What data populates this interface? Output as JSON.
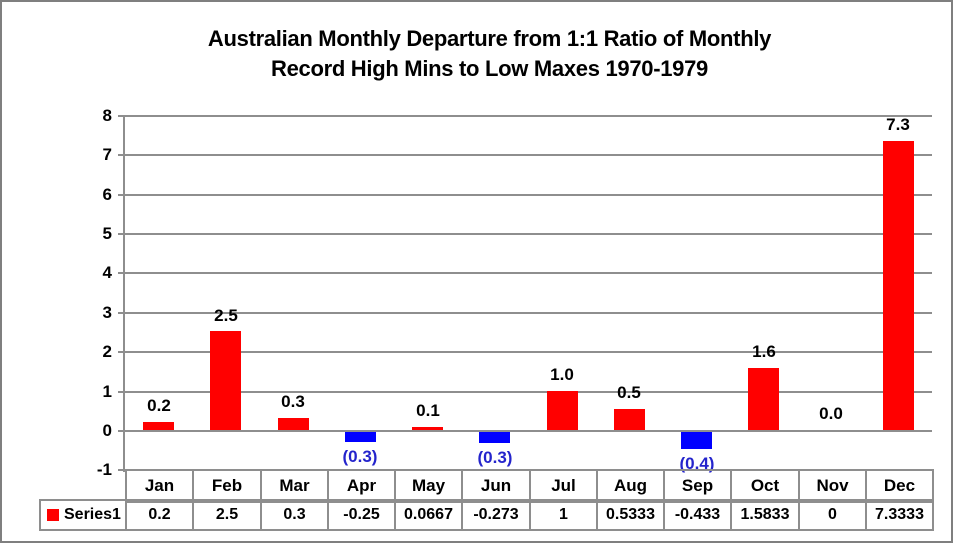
{
  "window": {
    "background": "#ffffff",
    "border_color": "#7f7f7f"
  },
  "chart_data": {
    "type": "bar",
    "title_line1": "Australian Monthly Departure from 1:1 Ratio of Monthly",
    "title_line2": "Record High Mins to Low Maxes 1970-1979",
    "categories": [
      "Jan",
      "Feb",
      "Mar",
      "Apr",
      "May",
      "Jun",
      "Jul",
      "Aug",
      "Sep",
      "Oct",
      "Nov",
      "Dec"
    ],
    "series": [
      {
        "name": "Series1",
        "values": [
          0.2,
          2.5,
          0.3,
          -0.25,
          0.0667,
          -0.273,
          1,
          0.5333,
          -0.433,
          1.5833,
          0,
          7.3333
        ]
      }
    ],
    "bar_labels": [
      "0.2",
      "2.5",
      "0.3",
      "(0.3)",
      "0.1",
      "(0.3)",
      "1.0",
      "0.5",
      "(0.4)",
      "1.6",
      "0.0",
      "7.3"
    ],
    "table_values": [
      "0.2",
      "2.5",
      "0.3",
      "-0.25",
      "0.0667",
      "-0.273",
      "1",
      "0.5333",
      "-0.433",
      "1.5833",
      "0",
      "7.3333"
    ],
    "y_ticks": [
      "8",
      "7",
      "6",
      "5",
      "4",
      "3",
      "2",
      "1",
      "0",
      "-1"
    ],
    "ylim": [
      -1,
      8
    ],
    "grid": true,
    "legend_position": "data-table",
    "colors": {
      "positive_bar": "#ff0000",
      "negative_bar": "#0000ff",
      "negative_label": "#2424cc",
      "positive_label": "#000000",
      "gridline": "#8e8e8e",
      "text": "#000000",
      "legend_swatch": "#ff0000"
    }
  }
}
